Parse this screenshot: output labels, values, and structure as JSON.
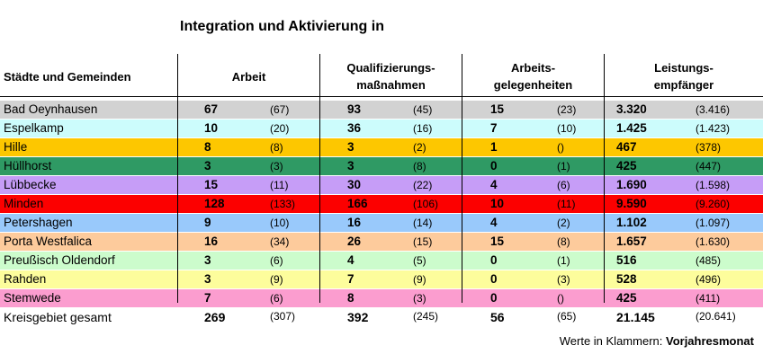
{
  "title": "Integration und Aktivierung in",
  "headers": {
    "city": "Städte und Gemeinden",
    "work": "Arbeit",
    "qual1": "Qualifizierungs-",
    "qual2": "maßnahmen",
    "opp1": "Arbeits-",
    "opp2": "gelegenheiten",
    "ben1": "Leistungs-",
    "ben2": "empfänger"
  },
  "rows": [
    {
      "name": "Bad Oeynhausen",
      "color": "#d2d2d2",
      "a": "67",
      "a_prev": "(67)",
      "q": "93",
      "q_prev": "(45)",
      "o": "15",
      "o_prev": "(23)",
      "l": "3.320",
      "l_prev": "(3.416)"
    },
    {
      "name": "Espelkamp",
      "color": "#ccfcfc",
      "a": "10",
      "a_prev": "(20)",
      "q": "36",
      "q_prev": "(16)",
      "o": "7",
      "o_prev": "(10)",
      "l": "1.425",
      "l_prev": "(1.423)"
    },
    {
      "name": "Hille",
      "color": "#fdc700",
      "a": "8",
      "a_prev": "(8)",
      "q": "3",
      "q_prev": "(2)",
      "o": "1",
      "o_prev": "()",
      "l": "467",
      "l_prev": "(378)"
    },
    {
      "name": "Hüllhorst",
      "color": "#2f9a64",
      "a": "3",
      "a_prev": "(3)",
      "q": "3",
      "q_prev": "(8)",
      "o": "0",
      "o_prev": "(1)",
      "l": "425",
      "l_prev": "(447)"
    },
    {
      "name": "Lübbecke",
      "color": "#c69df7",
      "a": "15",
      "a_prev": "(11)",
      "q": "30",
      "q_prev": "(22)",
      "o": "4",
      "o_prev": "(6)",
      "l": "1.690",
      "l_prev": "(1.598)"
    },
    {
      "name": "Minden",
      "color": "#fc0000",
      "a": "128",
      "a_prev": "(133)",
      "q": "166",
      "q_prev": "(106)",
      "o": "10",
      "o_prev": "(11)",
      "l": "9.590",
      "l_prev": "(9.260)"
    },
    {
      "name": "Petershagen",
      "color": "#99c9fb",
      "a": "9",
      "a_prev": "(10)",
      "q": "16",
      "q_prev": "(14)",
      "o": "4",
      "o_prev": "(2)",
      "l": "1.102",
      "l_prev": "(1.097)"
    },
    {
      "name": "Porta Westfalica",
      "color": "#fdcb9c",
      "a": "16",
      "a_prev": "(34)",
      "q": "26",
      "q_prev": "(15)",
      "o": "15",
      "o_prev": "(8)",
      "l": "1.657",
      "l_prev": "(1.630)"
    },
    {
      "name": "Preußisch Oldendorf",
      "color": "#ccfccc",
      "a": "3",
      "a_prev": "(6)",
      "q": "4",
      "q_prev": "(5)",
      "o": "0",
      "o_prev": "(1)",
      "l": "516",
      "l_prev": "(485)"
    },
    {
      "name": "Rahden",
      "color": "#fdfd9c",
      "a": "3",
      "a_prev": "(9)",
      "q": "7",
      "q_prev": "(9)",
      "o": "0",
      "o_prev": "(3)",
      "l": "528",
      "l_prev": "(496)"
    },
    {
      "name": "Stemwede",
      "color": "#fb9dcf",
      "a": "7",
      "a_prev": "(6)",
      "q": "8",
      "q_prev": "(3)",
      "o": "0",
      "o_prev": "()",
      "l": "425",
      "l_prev": "(411)"
    }
  ],
  "total": {
    "name": "Kreisgebiet gesamt",
    "a": "269",
    "a_prev": "(307)",
    "q": "392",
    "q_prev": "(245)",
    "o": "56",
    "o_prev": "(65)",
    "l": "21.145",
    "l_prev": "(20.641)"
  },
  "note": {
    "prefix": "Werte in Klammern: ",
    "bold": "Vorjahresmonat"
  }
}
